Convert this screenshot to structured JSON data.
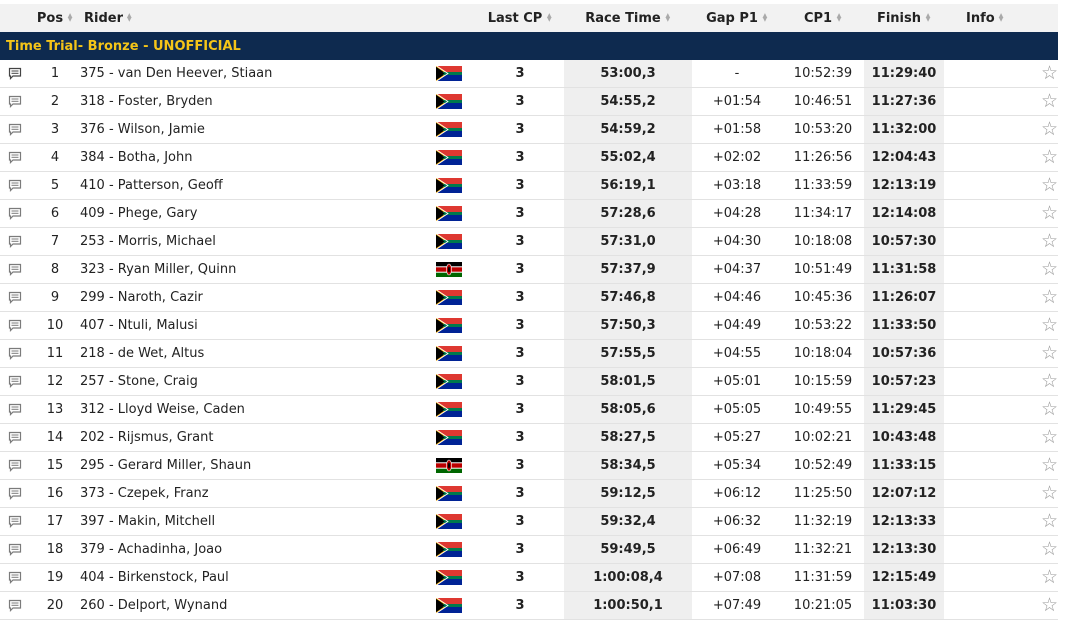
{
  "headers": {
    "pos": "Pos",
    "rider": "Rider",
    "last_cp": "Last CP",
    "race_time": "Race Time",
    "gap_p1": "Gap P1",
    "cp1": "CP1",
    "finish": "Finish",
    "info": "Info"
  },
  "group_title": "Time Trial- Bronze - UNOFFICIAL",
  "rows": [
    {
      "pos": "1",
      "rider": "375 - van Den Heever, Stiaan",
      "flag": "za",
      "last_cp": "3",
      "race_time": "53:00,3",
      "gap": "-",
      "cp1": "10:52:39",
      "finish": "11:29:40"
    },
    {
      "pos": "2",
      "rider": "318 - Foster, Bryden",
      "flag": "za",
      "last_cp": "3",
      "race_time": "54:55,2",
      "gap": "+01:54",
      "cp1": "10:46:51",
      "finish": "11:27:36"
    },
    {
      "pos": "3",
      "rider": "376 - Wilson, Jamie",
      "flag": "za",
      "last_cp": "3",
      "race_time": "54:59,2",
      "gap": "+01:58",
      "cp1": "10:53:20",
      "finish": "11:32:00"
    },
    {
      "pos": "4",
      "rider": "384 - Botha, John",
      "flag": "za",
      "last_cp": "3",
      "race_time": "55:02,4",
      "gap": "+02:02",
      "cp1": "11:26:56",
      "finish": "12:04:43"
    },
    {
      "pos": "5",
      "rider": "410 - Patterson, Geoff",
      "flag": "za",
      "last_cp": "3",
      "race_time": "56:19,1",
      "gap": "+03:18",
      "cp1": "11:33:59",
      "finish": "12:13:19"
    },
    {
      "pos": "6",
      "rider": "409 - Phege, Gary",
      "flag": "za",
      "last_cp": "3",
      "race_time": "57:28,6",
      "gap": "+04:28",
      "cp1": "11:34:17",
      "finish": "12:14:08"
    },
    {
      "pos": "7",
      "rider": "253 - Morris, Michael",
      "flag": "za",
      "last_cp": "3",
      "race_time": "57:31,0",
      "gap": "+04:30",
      "cp1": "10:18:08",
      "finish": "10:57:30"
    },
    {
      "pos": "8",
      "rider": "323 - Ryan Miller, Quinn",
      "flag": "ke",
      "last_cp": "3",
      "race_time": "57:37,9",
      "gap": "+04:37",
      "cp1": "10:51:49",
      "finish": "11:31:58"
    },
    {
      "pos": "9",
      "rider": "299 - Naroth, Cazir",
      "flag": "za",
      "last_cp": "3",
      "race_time": "57:46,8",
      "gap": "+04:46",
      "cp1": "10:45:36",
      "finish": "11:26:07"
    },
    {
      "pos": "10",
      "rider": "407 - Ntuli, Malusi",
      "flag": "za",
      "last_cp": "3",
      "race_time": "57:50,3",
      "gap": "+04:49",
      "cp1": "10:53:22",
      "finish": "11:33:50"
    },
    {
      "pos": "11",
      "rider": "218 - de Wet, Altus",
      "flag": "za",
      "last_cp": "3",
      "race_time": "57:55,5",
      "gap": "+04:55",
      "cp1": "10:18:04",
      "finish": "10:57:36"
    },
    {
      "pos": "12",
      "rider": "257 - Stone, Craig",
      "flag": "za",
      "last_cp": "3",
      "race_time": "58:01,5",
      "gap": "+05:01",
      "cp1": "10:15:59",
      "finish": "10:57:23"
    },
    {
      "pos": "13",
      "rider": "312 - Lloyd Weise, Caden",
      "flag": "za",
      "last_cp": "3",
      "race_time": "58:05,6",
      "gap": "+05:05",
      "cp1": "10:49:55",
      "finish": "11:29:45"
    },
    {
      "pos": "14",
      "rider": "202 - Rijsmus, Grant",
      "flag": "za",
      "last_cp": "3",
      "race_time": "58:27,5",
      "gap": "+05:27",
      "cp1": "10:02:21",
      "finish": "10:43:48"
    },
    {
      "pos": "15",
      "rider": "295 - Gerard Miller, Shaun",
      "flag": "ke",
      "last_cp": "3",
      "race_time": "58:34,5",
      "gap": "+05:34",
      "cp1": "10:52:49",
      "finish": "11:33:15"
    },
    {
      "pos": "16",
      "rider": "373 - Czepek, Franz",
      "flag": "za",
      "last_cp": "3",
      "race_time": "59:12,5",
      "gap": "+06:12",
      "cp1": "11:25:50",
      "finish": "12:07:12"
    },
    {
      "pos": "17",
      "rider": "397 - Makin, Mitchell",
      "flag": "za",
      "last_cp": "3",
      "race_time": "59:32,4",
      "gap": "+06:32",
      "cp1": "11:32:19",
      "finish": "12:13:33"
    },
    {
      "pos": "18",
      "rider": "379 - Achadinha, Joao",
      "flag": "za",
      "last_cp": "3",
      "race_time": "59:49,5",
      "gap": "+06:49",
      "cp1": "11:32:21",
      "finish": "12:13:30"
    },
    {
      "pos": "19",
      "rider": "404 - Birkenstock, Paul",
      "flag": "za",
      "last_cp": "3",
      "race_time": "1:00:08,4",
      "gap": "+07:08",
      "cp1": "11:31:59",
      "finish": "12:15:49"
    },
    {
      "pos": "20",
      "rider": "260 - Delport, Wynand",
      "flag": "za",
      "last_cp": "3",
      "race_time": "1:00:50,1",
      "gap": "+07:49",
      "cp1": "10:21:05",
      "finish": "11:03:30"
    }
  ],
  "icons": {
    "comment": "comment-icon",
    "star": "star-icon",
    "sort": "sort-icon"
  },
  "colors": {
    "group_bg": "#0e2a4f",
    "group_text": "#f5c518",
    "highlight_col": "#efefef"
  }
}
